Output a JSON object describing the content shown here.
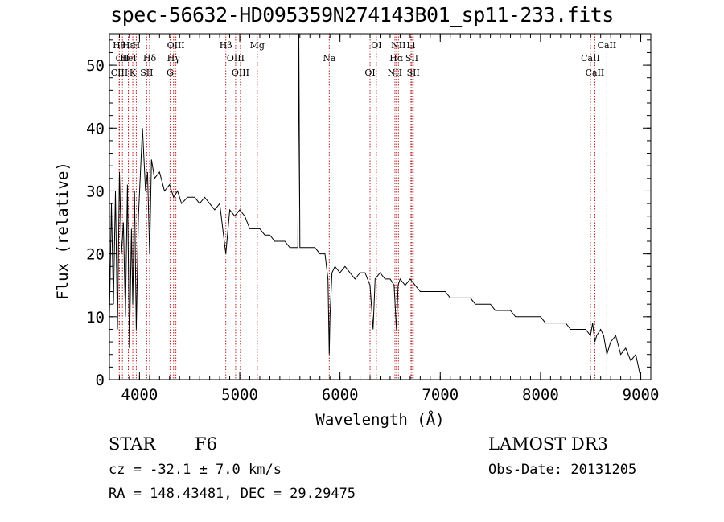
{
  "chart_data": {
    "type": "line",
    "title": "spec-56632-HD095359N274143B01_sp11-233.fits",
    "xlabel": "Wavelength (Å)",
    "ylabel": "Flux (relative)",
    "xlim": [
      3700,
      9100
    ],
    "ylim": [
      0,
      55
    ],
    "xticks": [
      4000,
      5000,
      6000,
      7000,
      8000,
      9000
    ],
    "yticks": [
      0,
      10,
      20,
      30,
      40,
      50
    ],
    "series": [
      {
        "name": "spectrum",
        "x": [
          3700,
          3720,
          3740,
          3760,
          3780,
          3800,
          3820,
          3840,
          3860,
          3880,
          3900,
          3920,
          3933,
          3950,
          3968,
          3990,
          4010,
          4030,
          4060,
          4080,
          4101,
          4120,
          4150,
          4200,
          4250,
          4300,
          4340,
          4380,
          4420,
          4480,
          4550,
          4600,
          4650,
          4700,
          4750,
          4800,
          4861,
          4900,
          4950,
          5000,
          5050,
          5100,
          5150,
          5200,
          5250,
          5300,
          5350,
          5400,
          5450,
          5500,
          5550,
          5580,
          5590,
          5600,
          5650,
          5700,
          5750,
          5800,
          5850,
          5880,
          5893,
          5900,
          5920,
          5950,
          6000,
          6050,
          6100,
          6150,
          6200,
          6250,
          6300,
          6330,
          6350,
          6400,
          6450,
          6500,
          6540,
          6563,
          6580,
          6600,
          6650,
          6700,
          6750,
          6800,
          6850,
          6900,
          6950,
          7000,
          7050,
          7100,
          7150,
          7200,
          7250,
          7300,
          7350,
          7400,
          7450,
          7500,
          7550,
          7600,
          7650,
          7700,
          7750,
          7800,
          7850,
          7900,
          7950,
          8000,
          8050,
          8100,
          8150,
          8200,
          8250,
          8300,
          8350,
          8400,
          8450,
          8498,
          8520,
          8542,
          8560,
          8600,
          8630,
          8662,
          8700,
          8750,
          8800,
          8850,
          8900,
          8950,
          8990
        ],
        "values": [
          10,
          28,
          12,
          30,
          8,
          33,
          20,
          25,
          10,
          31,
          5,
          24,
          12,
          30,
          8,
          26,
          33,
          40,
          30,
          33,
          20,
          35,
          32,
          33,
          30,
          31,
          29,
          30,
          28,
          29,
          29,
          28,
          29,
          28,
          27,
          28,
          20,
          27,
          26,
          27,
          26,
          24,
          24,
          24,
          23,
          23,
          22,
          22,
          22,
          21,
          21,
          21,
          55,
          21,
          21,
          21,
          21,
          20,
          20,
          16,
          4,
          10,
          17,
          18,
          17,
          18,
          17,
          16,
          17,
          17,
          15,
          8,
          16,
          17,
          16,
          16,
          15,
          8,
          15,
          16,
          15,
          16,
          15,
          14,
          14,
          14,
          14,
          14,
          14,
          13,
          13,
          13,
          13,
          13,
          12,
          12,
          12,
          12,
          11,
          11,
          11,
          11,
          10,
          10,
          10,
          10,
          10,
          10,
          9,
          9,
          9,
          9,
          9,
          8,
          8,
          8,
          8,
          7,
          9,
          6,
          7,
          8,
          7,
          4,
          6,
          7,
          4,
          5,
          3,
          4,
          1
        ]
      }
    ],
    "line_ids": [
      {
        "label": "Hθ",
        "x": 3798
      },
      {
        "label": "CII",
        "x": 3830
      },
      {
        "label": "CIII",
        "x": 3800
      },
      {
        "label": "Hε",
        "x": 3889
      },
      {
        "label": "HeI",
        "x": 3889
      },
      {
        "label": "K",
        "x": 3933
      },
      {
        "label": "H",
        "x": 3968
      },
      {
        "label": "Hδ",
        "x": 4101
      },
      {
        "label": "SII",
        "x": 4072
      },
      {
        "label": "OIII",
        "x": 4363
      },
      {
        "label": "Hγ",
        "x": 4340
      },
      {
        "label": "G",
        "x": 4305
      },
      {
        "label": "Hβ",
        "x": 4861
      },
      {
        "label": "OIII",
        "x": 4959
      },
      {
        "label": "OIII",
        "x": 5007
      },
      {
        "label": "Mg",
        "x": 5175
      },
      {
        "label": "Na",
        "x": 5893
      },
      {
        "label": "OI",
        "x": 6300
      },
      {
        "label": "OI",
        "x": 6363
      },
      {
        "label": "Hα",
        "x": 6563
      },
      {
        "label": "NII",
        "x": 6548
      },
      {
        "label": "NII",
        "x": 6583
      },
      {
        "label": "SII",
        "x": 6717
      },
      {
        "label": "SII",
        "x": 6731
      },
      {
        "label": "Li",
        "x": 6708
      },
      {
        "label": "CaII",
        "x": 8498
      },
      {
        "label": "CaII",
        "x": 8542
      },
      {
        "label": "CaII",
        "x": 8662
      }
    ]
  },
  "info": {
    "obj_class": "STAR",
    "subclass": "F6",
    "survey": "LAMOST DR3",
    "cz": "cz = -32.1 ± 7.0 km/s",
    "obs_date": "Obs-Date: 20131205",
    "coords": "RA = 148.43481, DEC =  29.29475"
  }
}
